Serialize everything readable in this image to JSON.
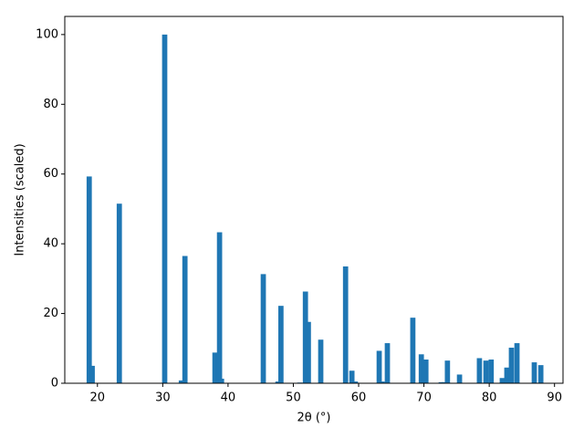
{
  "chart_data": {
    "type": "bar",
    "xlabel": "2θ (°)",
    "ylabel": "Intensities (scaled)",
    "x": [
      18.74,
      19.2,
      23.35,
      30.3,
      32.85,
      33.4,
      38.0,
      38.7,
      39.0,
      45.4,
      47.65,
      48.1,
      51.0,
      51.85,
      52.3,
      54.2,
      58.0,
      58.97,
      59.5,
      63.15,
      63.6,
      64.4,
      68.3,
      69.6,
      70.3,
      72.65,
      73.1,
      73.6,
      75.45,
      78.5,
      79.5,
      80.3,
      82.0,
      82.7,
      83.4,
      84.25,
      86.9,
      87.9
    ],
    "values": [
      59.3,
      5,
      51.5,
      100,
      0.8,
      36.5,
      8.8,
      43.3,
      1.3,
      31.3,
      0.5,
      22.2,
      0.2,
      26.3,
      17.6,
      12.5,
      33.5,
      3.6,
      0.5,
      9.3,
      0.5,
      11.5,
      18.8,
      8.3,
      6.8,
      0.3,
      0.3,
      6.5,
      2.5,
      7.2,
      6.5,
      6.8,
      1.5,
      4.5,
      10.2,
      11.5,
      6,
      5.2
    ],
    "bar_width": 0.8,
    "color": "#1f77b4",
    "xlim": [
      15,
      91.3
    ],
    "xticks": [
      20,
      30,
      40,
      50,
      60,
      70,
      80,
      90
    ],
    "ylim": [
      0,
      105.2
    ],
    "yticks": [
      0,
      20,
      40,
      60,
      80,
      100
    ]
  }
}
